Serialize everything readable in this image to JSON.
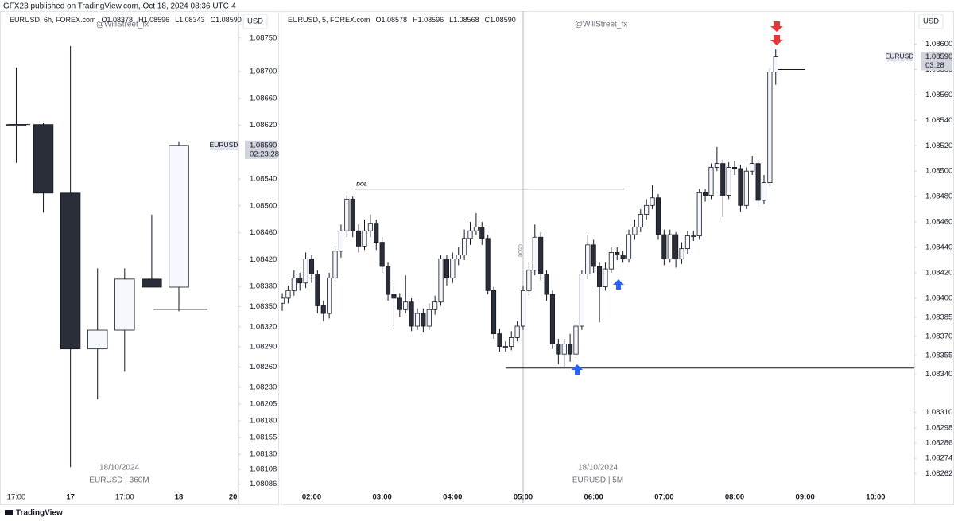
{
  "header": {
    "text": "GFX23 published on TradingView.com, Oct 18, 2024 08:36 UTC-4"
  },
  "footer": {
    "brand": "TradingView"
  },
  "chart_data": [
    {
      "type": "candlestick",
      "title": "EURUSD, 6h, FOREX.com",
      "ohlc": [
        "O1.08378",
        "H1.08596",
        "L1.08343",
        "C1.08590"
      ],
      "author": "@WillStreet_fx",
      "currency": "USD",
      "watermark": [
        "18/10/2024",
        "EURUSD | 360M"
      ],
      "price_label": {
        "symbol": "EURUSD",
        "value": 1.0859,
        "label": "1.08590",
        "countdown": "02:23:28"
      },
      "up_color": "#f5f8fd",
      "down_color": "#2a2e39",
      "border_color": "#131722",
      "x": [
        17,
        23,
        29,
        35,
        41,
        47,
        53
      ],
      "open": [
        1.08621,
        1.08621,
        1.08519,
        1.08287,
        1.08315,
        1.08391,
        1.08379
      ],
      "high": [
        1.08706,
        1.08623,
        1.08738,
        1.08407,
        1.08407,
        1.08487,
        1.08596
      ],
      "low": [
        1.08564,
        1.0849,
        1.08111,
        1.08212,
        1.08253,
        1.08379,
        1.08343
      ],
      "close": [
        1.08621,
        1.08519,
        1.08287,
        1.08315,
        1.08391,
        1.08379,
        1.0859
      ],
      "xlim": [
        13.4,
        66.2
      ],
      "xticks": [
        {
          "value": 17,
          "label": "17:00"
        },
        {
          "value": 29,
          "label": "17",
          "bold": true
        },
        {
          "value": 41,
          "label": "17:00"
        },
        {
          "value": 53,
          "label": "18",
          "bold": true
        },
        {
          "value": 65,
          "label": "20",
          "bold": true
        }
      ],
      "ylim": [
        1.08058,
        1.0879
      ],
      "yticks": [
        {
          "value": 1.0875,
          "label": "1.08750"
        },
        {
          "value": 1.087,
          "label": "1.08700"
        },
        {
          "value": 1.0866,
          "label": "1.08660"
        },
        {
          "value": 1.0862,
          "label": "1.08620"
        },
        {
          "value": 1.0854,
          "label": "1.08540"
        },
        {
          "value": 1.085,
          "label": "1.08500"
        },
        {
          "value": 1.0846,
          "label": "1.08460"
        },
        {
          "value": 1.0842,
          "label": "1.08420"
        },
        {
          "value": 1.0838,
          "label": "1.08380"
        },
        {
          "value": 1.0835,
          "label": "1.08350"
        },
        {
          "value": 1.0832,
          "label": "1.08320"
        },
        {
          "value": 1.0829,
          "label": "1.08290"
        },
        {
          "value": 1.0826,
          "label": "1.08260"
        },
        {
          "value": 1.0823,
          "label": "1.08230"
        },
        1.08205,
        {
          "value": 1.0818,
          "label": "1.08180"
        },
        1.08155,
        {
          "value": 1.0813,
          "label": "1.08130"
        },
        1.08108,
        1.08086
      ],
      "levels": [
        {
          "value": 1.08621,
          "x": [
            15.2,
            20.1
          ]
        },
        {
          "value": 1.08346,
          "x": [
            47.4,
            59.3
          ]
        }
      ]
    },
    {
      "type": "candlestick",
      "title": "EURUSD, 5, FOREX.com",
      "ohlc": [
        "O1.08578",
        "H1.08596",
        "L1.08568",
        "C1.08590"
      ],
      "author": "@WillStreet_fx",
      "currency": "USD",
      "watermark": [
        "18/10/2024",
        "EURUSD | 5M"
      ],
      "price_label": {
        "symbol": "EURUSD",
        "value": 1.0859,
        "label": "1.08590",
        "countdown": "03:28"
      },
      "up_color": "#f5f8fd",
      "down_color": "#2a2e39",
      "border_color": "#131722",
      "x": [
        95,
        100,
        105,
        110,
        115,
        120,
        125,
        130,
        135,
        140,
        145,
        150,
        155,
        160,
        165,
        170,
        175,
        180,
        185,
        190,
        195,
        200,
        205,
        210,
        215,
        220,
        225,
        230,
        235,
        240,
        245,
        250,
        255,
        260,
        265,
        270,
        275,
        280,
        285,
        290,
        295,
        300,
        305,
        310,
        315,
        320,
        325,
        330,
        335,
        340,
        345,
        350,
        355,
        360,
        365,
        370,
        375,
        380,
        385,
        390,
        395,
        400,
        405,
        410,
        415,
        420,
        425,
        430,
        435,
        440,
        445,
        450,
        455,
        460,
        465,
        470,
        475,
        480,
        485,
        490,
        495,
        500,
        505,
        510,
        515
      ],
      "open": [
        1.08396,
        1.084,
        1.08406,
        1.08416,
        1.08412,
        1.08431,
        1.08419,
        1.08394,
        1.08388,
        1.08416,
        1.08437,
        1.08453,
        1.08478,
        1.08453,
        1.08441,
        1.08453,
        1.08459,
        1.08444,
        1.08425,
        1.08403,
        1.084,
        1.08391,
        1.08397,
        1.08378,
        1.08388,
        1.08378,
        1.08391,
        1.08397,
        1.08431,
        1.08416,
        1.08431,
        1.08434,
        1.08447,
        1.08453,
        1.08456,
        1.08447,
        1.08406,
        1.08372,
        1.08362,
        1.08362,
        1.08369,
        1.08378,
        1.08406,
        1.08422,
        1.08448,
        1.08419,
        1.08403,
        1.08364,
        1.08356,
        1.08364,
        1.08356,
        1.08378,
        1.08419,
        1.08442,
        1.08425,
        1.08409,
        1.08423,
        1.08436,
        1.08434,
        1.08431,
        1.0845,
        1.08456,
        1.08466,
        1.08473,
        1.08479,
        1.0845,
        1.08431,
        1.0845,
        1.08431,
        1.08439,
        1.08449,
        1.08449,
        1.08483,
        1.08481,
        1.08503,
        1.08506,
        1.08481,
        1.08503,
        1.08502,
        1.08473,
        1.085,
        1.08506,
        1.08477,
        1.08491,
        1.08578
      ],
      "high": [
        1.08404,
        1.0841,
        1.08422,
        1.0842,
        1.08436,
        1.08434,
        1.08422,
        1.08398,
        1.0842,
        1.0844,
        1.08458,
        1.08481,
        1.0848,
        1.08458,
        1.08462,
        1.08466,
        1.08462,
        1.08448,
        1.08428,
        1.08412,
        1.08404,
        1.08418,
        1.084,
        1.08392,
        1.08392,
        1.08396,
        1.08402,
        1.08434,
        1.08434,
        1.08436,
        1.0844,
        1.08454,
        1.0846,
        1.08467,
        1.0846,
        1.0845,
        1.08409,
        1.08376,
        1.08366,
        1.08374,
        1.08382,
        1.0841,
        1.08428,
        1.08458,
        1.08452,
        1.08422,
        1.08406,
        1.08368,
        1.08368,
        1.08372,
        1.08382,
        1.08422,
        1.0845,
        1.08446,
        1.08428,
        1.08428,
        1.0844,
        1.0844,
        1.08437,
        1.08454,
        1.08462,
        1.0847,
        1.08478,
        1.08489,
        1.08482,
        1.08454,
        1.08454,
        1.08452,
        1.08444,
        1.08453,
        1.08453,
        1.08486,
        1.08486,
        1.08506,
        1.08519,
        1.08509,
        1.08507,
        1.08508,
        1.08505,
        1.08503,
        1.08512,
        1.08509,
        1.08497,
        1.08581,
        1.08596
      ],
      "low": [
        1.0839,
        1.08396,
        1.08402,
        1.08406,
        1.08408,
        1.08412,
        1.08388,
        1.08382,
        1.08384,
        1.08412,
        1.08432,
        1.08448,
        1.08448,
        1.08436,
        1.08438,
        1.08448,
        1.08438,
        1.0842,
        1.08398,
        1.08378,
        1.08385,
        1.08388,
        1.08374,
        1.08375,
        1.08373,
        1.08375,
        1.08387,
        1.08394,
        1.0841,
        1.08412,
        1.08426,
        1.0843,
        1.08442,
        1.0845,
        1.08442,
        1.08403,
        1.08368,
        1.08358,
        1.08358,
        1.08359,
        1.08366,
        1.08375,
        1.08402,
        1.08418,
        1.08414,
        1.08398,
        1.0836,
        1.08348,
        1.08346,
        1.0835,
        1.08353,
        1.08375,
        1.08415,
        1.0842,
        1.08381,
        1.08406,
        1.0842,
        1.0843,
        1.08428,
        1.08428,
        1.08446,
        1.08452,
        1.08462,
        1.0847,
        1.08446,
        1.08426,
        1.08428,
        1.08424,
        1.08427,
        1.08435,
        1.08445,
        1.08446,
        1.08476,
        1.08478,
        1.085,
        1.08464,
        1.08478,
        1.08497,
        1.08468,
        1.0847,
        1.08497,
        1.08472,
        1.08474,
        1.08488,
        1.08568
      ],
      "close": [
        1.084,
        1.08406,
        1.08416,
        1.08412,
        1.08431,
        1.08419,
        1.08394,
        1.08388,
        1.08416,
        1.08437,
        1.08453,
        1.08478,
        1.08453,
        1.08441,
        1.08453,
        1.08459,
        1.08444,
        1.08425,
        1.08403,
        1.084,
        1.08391,
        1.08397,
        1.08378,
        1.08388,
        1.08378,
        1.08391,
        1.08397,
        1.08431,
        1.08416,
        1.08431,
        1.08434,
        1.08447,
        1.08453,
        1.08456,
        1.08447,
        1.08406,
        1.08372,
        1.08362,
        1.08362,
        1.08369,
        1.08378,
        1.08406,
        1.08422,
        1.08448,
        1.08419,
        1.08403,
        1.08364,
        1.08356,
        1.08364,
        1.08356,
        1.08378,
        1.08419,
        1.08442,
        1.08425,
        1.08409,
        1.08423,
        1.08436,
        1.08434,
        1.08431,
        1.0845,
        1.08456,
        1.08466,
        1.08473,
        1.08479,
        1.0845,
        1.08431,
        1.0845,
        1.08431,
        1.08439,
        1.08449,
        1.08449,
        1.08483,
        1.08481,
        1.08503,
        1.08506,
        1.08481,
        1.08503,
        1.08502,
        1.08473,
        1.085,
        1.08506,
        1.08477,
        1.08491,
        1.08578,
        1.0859
      ],
      "xlim": [
        94.3,
        632.9
      ],
      "xticks": [
        {
          "value": 120,
          "label": "02:00",
          "bold": true
        },
        {
          "value": 180,
          "label": "03:00",
          "bold": true
        },
        {
          "value": 240,
          "label": "04:00",
          "bold": true
        },
        {
          "value": 300,
          "label": "05:00",
          "bold": true
        },
        {
          "value": 360,
          "label": "06:00",
          "bold": true
        },
        {
          "value": 420,
          "label": "07:00",
          "bold": true
        },
        {
          "value": 480,
          "label": "08:00",
          "bold": true
        },
        {
          "value": 540,
          "label": "09:00",
          "bold": true
        },
        {
          "value": 600,
          "label": "10:00",
          "bold": true
        }
      ],
      "ylim": [
        1.08239,
        1.08626
      ],
      "yticks": [
        {
          "value": 1.086,
          "label": "1.08600"
        },
        {
          "value": 1.0858,
          "label": "1.08580"
        },
        {
          "value": 1.0856,
          "label": "1.08560"
        },
        {
          "value": 1.0854,
          "label": "1.08540"
        },
        {
          "value": 1.0852,
          "label": "1.08520"
        },
        {
          "value": 1.085,
          "label": "1.08500"
        },
        {
          "value": 1.0848,
          "label": "1.08480"
        },
        {
          "value": 1.0846,
          "label": "1.08460"
        },
        {
          "value": 1.0844,
          "label": "1.08440"
        },
        {
          "value": 1.0842,
          "label": "1.08420"
        },
        {
          "value": 1.084,
          "label": "1.08400"
        },
        1.08385,
        {
          "value": 1.0837,
          "label": "1.08370"
        },
        1.08355,
        {
          "value": 1.0834,
          "label": "1.08340"
        },
        {
          "value": 1.0831,
          "label": "1.08310"
        },
        1.08298,
        1.08286,
        1.08274,
        1.08262
      ],
      "levels": [
        {
          "value": 1.08486,
          "x": [
            156.6,
            385.6
          ],
          "label": "DOL"
        },
        {
          "value": 1.08345,
          "x": [
            285.3,
            632.9
          ]
        },
        {
          "value": 1.0858,
          "x": [
            515.6,
            540
          ]
        }
      ],
      "vline": {
        "x": 300,
        "label": "0500"
      }
    }
  ]
}
